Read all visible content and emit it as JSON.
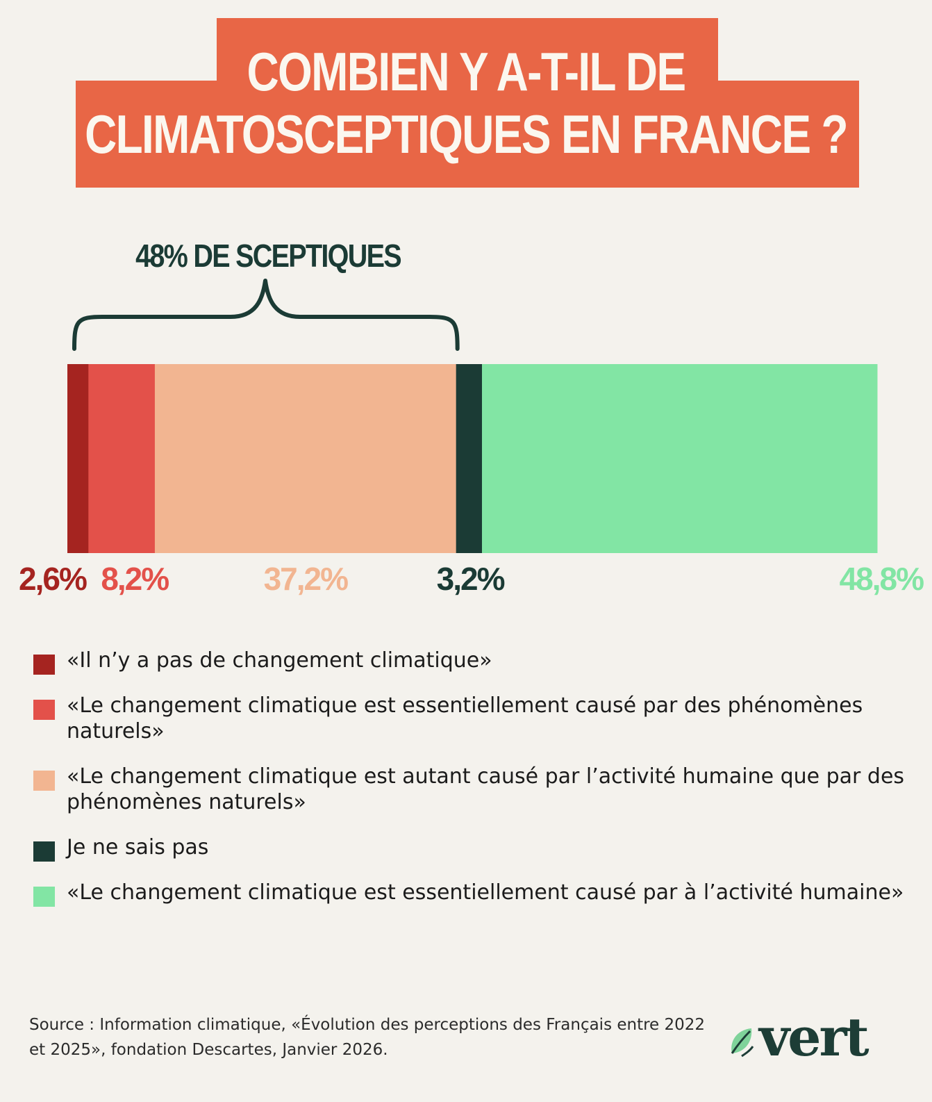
{
  "title": {
    "line1": "COMBIEN Y A-T-IL DE",
    "line2": "CLIMATOSCEPTIQUES EN FRANCE ?",
    "bg_color": "#e86646"
  },
  "chart_data": {
    "type": "bar",
    "orientation": "horizontal-stacked",
    "title": "COMBIEN Y A-T-IL DE CLIMATOSCEPTIQUES EN FRANCE ?",
    "annotation": "48% DE SCEPTIQUES",
    "xlim": [
      0,
      100
    ],
    "series": [
      {
        "name": "«Il n’y a pas de changement climatique»",
        "value": 2.6,
        "label": "2,6%",
        "color": "#a52420"
      },
      {
        "name": "«Le changement climatique est essentiellement causé par des phénomènes naturels»",
        "value": 8.2,
        "label": "8,2%",
        "color": "#e3514a"
      },
      {
        "name": "«Le changement climatique est autant causé par l’activité humaine que par des phénomènes naturels»",
        "value": 37.2,
        "label": "37,2%",
        "color": "#f2b591"
      },
      {
        "name": "Je ne sais pas",
        "value": 3.2,
        "label": "3,2%",
        "color": "#1b3b35"
      },
      {
        "name": "«Le changement climatique est essentiellement causé par à l’activité humaine»",
        "value": 48.8,
        "label": "48,8%",
        "color": "#82e5a4"
      }
    ]
  },
  "legend": {
    "items": [
      {
        "text": "«Il n’y a pas de changement climatique»",
        "color": "#a52420"
      },
      {
        "text": "«Le changement climatique est essentiellement causé par des phénomènes naturels»",
        "color": "#e3514a"
      },
      {
        "text": "«Le changement climatique est autant causé par l’activité humaine que par des phénomènes naturels»",
        "color": "#f2b591"
      },
      {
        "text": "Je ne sais pas",
        "color": "#1b3b35"
      },
      {
        "text": "«Le changement climatique est essentiellement causé par à l’activité humaine»",
        "color": "#82e5a4"
      }
    ]
  },
  "source": "Source : Information climatique, «Évolution des perceptions des Français entre 2022 et 2025», fondation Descartes, Janvier 2026.",
  "logo": {
    "text": "vert",
    "icon": "leaf-icon",
    "color": "#1d3d36"
  }
}
